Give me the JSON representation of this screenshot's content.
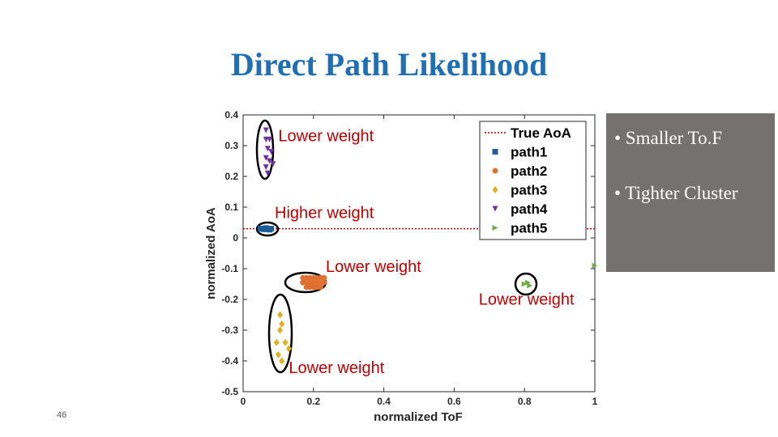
{
  "slide": {
    "title": "Direct Path Likelihood",
    "page_number": "46"
  },
  "notes": [
    "• Smaller To.F",
    "• Tighter Cluster"
  ],
  "colors": {
    "title": "#1f6fb4",
    "annotation": "#c00000",
    "true_aoa": "#c00000",
    "note_box": "#767171"
  },
  "chart_data": {
    "type": "scatter",
    "xlabel": "normalized ToF",
    "ylabel": "normalized AoA",
    "xlim": [
      0,
      1
    ],
    "ylim": [
      -0.5,
      0.4
    ],
    "x_ticks": [
      "0",
      "0.2",
      "0.4",
      "0.6",
      "0.8",
      "1"
    ],
    "y_ticks": [
      "0.4",
      "0.3",
      "0.2",
      "0.1",
      "0",
      "-0.1",
      "-0.2",
      "-0.3",
      "-0.4",
      "-0.5"
    ],
    "legend_position": "top-right",
    "true_aoa": {
      "name": "True AoA",
      "y": 0.03,
      "color": "#c00000"
    },
    "series": [
      {
        "name": "path1",
        "marker": "square",
        "color": "#1f5c99",
        "points": [
          [
            0.05,
            0.03
          ],
          [
            0.055,
            0.03
          ],
          [
            0.06,
            0.028
          ],
          [
            0.065,
            0.032
          ],
          [
            0.07,
            0.03
          ],
          [
            0.075,
            0.027
          ],
          [
            0.08,
            0.03
          ]
        ]
      },
      {
        "name": "path2",
        "marker": "circle",
        "color": "#e07030",
        "points": [
          [
            0.17,
            -0.13
          ],
          [
            0.18,
            -0.13
          ],
          [
            0.19,
            -0.13
          ],
          [
            0.2,
            -0.13
          ],
          [
            0.21,
            -0.13
          ],
          [
            0.22,
            -0.13
          ],
          [
            0.23,
            -0.13
          ],
          [
            0.17,
            -0.145
          ],
          [
            0.18,
            -0.145
          ],
          [
            0.19,
            -0.145
          ],
          [
            0.2,
            -0.145
          ],
          [
            0.21,
            -0.145
          ],
          [
            0.22,
            -0.145
          ],
          [
            0.23,
            -0.145
          ],
          [
            0.18,
            -0.16
          ],
          [
            0.19,
            -0.16
          ],
          [
            0.2,
            -0.16
          ],
          [
            0.21,
            -0.16
          ],
          [
            0.22,
            -0.16
          ]
        ]
      },
      {
        "name": "path3",
        "marker": "diamond",
        "color": "#e0b020",
        "points": [
          [
            0.105,
            -0.25
          ],
          [
            0.11,
            -0.28
          ],
          [
            0.105,
            -0.3
          ],
          [
            0.095,
            -0.34
          ],
          [
            0.12,
            -0.34
          ],
          [
            0.1,
            -0.38
          ],
          [
            0.13,
            -0.36
          ],
          [
            0.11,
            -0.4
          ]
        ]
      },
      {
        "name": "path4",
        "marker": "triangle-down",
        "color": "#7030a0",
        "points": [
          [
            0.065,
            0.35
          ],
          [
            0.065,
            0.32
          ],
          [
            0.075,
            0.32
          ],
          [
            0.07,
            0.29
          ],
          [
            0.08,
            0.28
          ],
          [
            0.065,
            0.26
          ],
          [
            0.075,
            0.25
          ],
          [
            0.065,
            0.23
          ],
          [
            0.085,
            0.24
          ],
          [
            0.07,
            0.21
          ]
        ]
      },
      {
        "name": "path5",
        "marker": "triangle-right",
        "color": "#70ad47",
        "points": [
          [
            0.8,
            -0.15
          ],
          [
            0.81,
            -0.145
          ],
          [
            0.815,
            -0.155
          ],
          [
            1.0,
            -0.09
          ]
        ]
      }
    ],
    "annotations": [
      {
        "text": "Lower weight",
        "x": 0.1,
        "y": 0.315
      },
      {
        "text": "Higher weight",
        "x": 0.09,
        "y": 0.065
      },
      {
        "text": "Lower weight",
        "x": 0.235,
        "y": -0.11
      },
      {
        "text": "Lower weight",
        "x": 0.67,
        "y": -0.217
      },
      {
        "text": "Lower weight",
        "x": 0.13,
        "y": -0.44
      }
    ]
  }
}
